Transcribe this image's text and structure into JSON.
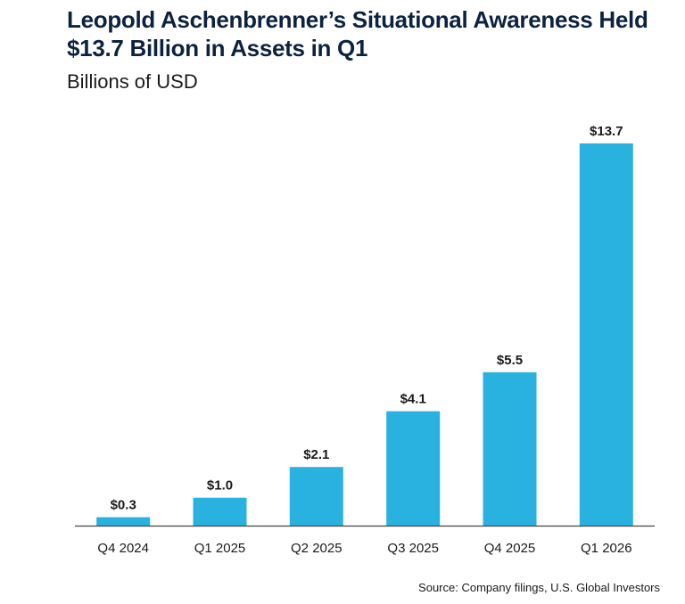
{
  "title": "Leopold Aschenbrenner’s Situational Awareness Held $13.7 Billion in Assets in Q1",
  "subtitle": "Billions of USD",
  "source": "Source: Company filings, U.S. Global Investors",
  "colors": {
    "bar": "#29b2df",
    "title": "#0c2340",
    "axis": "#444444",
    "text": "#1a1a1a"
  },
  "chart_data": {
    "type": "bar",
    "title": "Leopold Aschenbrenner’s Situational Awareness Held $13.7 Billion in Assets in Q1",
    "ylabel": "Billions of USD",
    "xlabel": "",
    "categories": [
      "Q4 2024",
      "Q1 2025",
      "Q2 2025",
      "Q3 2025",
      "Q4 2025",
      "Q1 2026"
    ],
    "values": [
      0.3,
      1.0,
      2.1,
      4.1,
      5.5,
      13.7
    ],
    "data_labels": [
      "$0.3",
      "$1.0",
      "$2.1",
      "$4.1",
      "$5.5",
      "$13.7"
    ],
    "ylim": [
      0,
      13.7
    ],
    "grid": false,
    "legend": "none"
  }
}
